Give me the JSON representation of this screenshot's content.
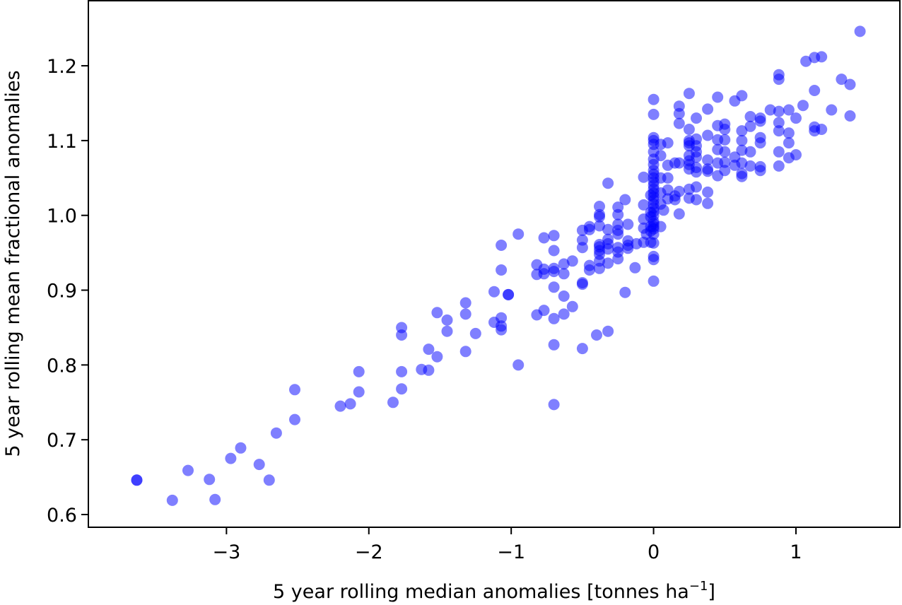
{
  "chart_data": {
    "type": "scatter",
    "title": "",
    "xlabel": "5 year rolling median anomalies [tonnes ha",
    "xlabel_sup": "−1",
    "xlabel_end": "]",
    "ylabel": "5 year rolling mean fractional anomalies",
    "xlim": [
      -3.97,
      1.73
    ],
    "ylim": [
      0.583,
      1.287
    ],
    "xticks": [
      -3,
      -2,
      -1,
      0,
      1
    ],
    "xtick_labels": [
      "−3",
      "−2",
      "−1",
      "0",
      "1"
    ],
    "yticks": [
      0.6,
      0.7,
      0.8,
      0.9,
      1.0,
      1.1,
      1.2
    ],
    "ytick_labels": [
      "0.6",
      "0.7",
      "0.8",
      "0.9",
      "1.0",
      "1.1",
      "1.2"
    ],
    "grid": false,
    "point_color": "#0000ff",
    "series": [
      {
        "points": [
          [
            -3.63,
            0.646
          ],
          [
            -3.63,
            0.646
          ],
          [
            -3.38,
            0.619
          ],
          [
            -3.27,
            0.659
          ],
          [
            -3.12,
            0.647
          ],
          [
            -3.08,
            0.62
          ],
          [
            -2.97,
            0.675
          ],
          [
            -2.9,
            0.689
          ],
          [
            -2.77,
            0.667
          ],
          [
            -2.7,
            0.646
          ],
          [
            -2.65,
            0.709
          ],
          [
            -2.52,
            0.727
          ],
          [
            -2.52,
            0.767
          ],
          [
            -2.2,
            0.745
          ],
          [
            -2.13,
            0.748
          ],
          [
            -2.07,
            0.764
          ],
          [
            -2.07,
            0.791
          ],
          [
            -1.83,
            0.75
          ],
          [
            -1.77,
            0.768
          ],
          [
            -1.77,
            0.791
          ],
          [
            -1.77,
            0.84
          ],
          [
            -1.77,
            0.85
          ],
          [
            -1.63,
            0.794
          ],
          [
            -1.58,
            0.793
          ],
          [
            -1.58,
            0.821
          ],
          [
            -1.52,
            0.811
          ],
          [
            -1.52,
            0.87
          ],
          [
            -1.45,
            0.845
          ],
          [
            -1.45,
            0.86
          ],
          [
            -1.32,
            0.818
          ],
          [
            -1.32,
            0.868
          ],
          [
            -1.32,
            0.883
          ],
          [
            -1.25,
            0.842
          ],
          [
            -1.12,
            0.898
          ],
          [
            -1.12,
            0.857
          ],
          [
            -1.07,
            0.847
          ],
          [
            -1.07,
            0.852
          ],
          [
            -1.07,
            0.863
          ],
          [
            -1.07,
            0.927
          ],
          [
            -1.07,
            0.96
          ],
          [
            -1.02,
            0.894
          ],
          [
            -1.02,
            0.894
          ],
          [
            -0.95,
            0.8
          ],
          [
            -0.95,
            0.975
          ],
          [
            -0.82,
            0.867
          ],
          [
            -0.82,
            0.921
          ],
          [
            -0.82,
            0.934
          ],
          [
            -0.77,
            0.873
          ],
          [
            -0.77,
            0.922
          ],
          [
            -0.77,
            0.928
          ],
          [
            -0.77,
            0.97
          ],
          [
            -0.7,
            0.747
          ],
          [
            -0.7,
            0.827
          ],
          [
            -0.7,
            0.862
          ],
          [
            -0.7,
            0.904
          ],
          [
            -0.7,
            0.925
          ],
          [
            -0.7,
            0.929
          ],
          [
            -0.7,
            0.953
          ],
          [
            -0.7,
            0.973
          ],
          [
            -0.63,
            0.868
          ],
          [
            -0.63,
            0.892
          ],
          [
            -0.63,
            0.922
          ],
          [
            -0.63,
            0.935
          ],
          [
            -0.57,
            0.878
          ],
          [
            -0.57,
            0.939
          ],
          [
            -0.5,
            0.822
          ],
          [
            -0.5,
            0.908
          ],
          [
            -0.5,
            0.91
          ],
          [
            -0.5,
            0.957
          ],
          [
            -0.5,
            0.967
          ],
          [
            -0.5,
            0.98
          ],
          [
            -0.45,
            0.927
          ],
          [
            -0.45,
            0.933
          ],
          [
            -0.45,
            0.981
          ],
          [
            -0.45,
            0.985
          ],
          [
            -0.4,
            0.84
          ],
          [
            -0.38,
            0.929
          ],
          [
            -0.38,
            0.939
          ],
          [
            -0.38,
            0.948
          ],
          [
            -0.38,
            0.953
          ],
          [
            -0.38,
            0.958
          ],
          [
            -0.38,
            0.961
          ],
          [
            -0.38,
            0.986
          ],
          [
            -0.38,
            0.998
          ],
          [
            -0.38,
            1.001
          ],
          [
            -0.38,
            1.012
          ],
          [
            -0.32,
            0.845
          ],
          [
            -0.32,
            0.936
          ],
          [
            -0.32,
            0.955
          ],
          [
            -0.32,
            0.962
          ],
          [
            -0.32,
            0.968
          ],
          [
            -0.32,
            0.981
          ],
          [
            -0.32,
            1.043
          ],
          [
            -0.25,
            0.942
          ],
          [
            -0.25,
            0.951
          ],
          [
            -0.25,
            0.957
          ],
          [
            -0.25,
            0.975
          ],
          [
            -0.25,
            0.98
          ],
          [
            -0.25,
            0.988
          ],
          [
            -0.25,
            1.001
          ],
          [
            -0.25,
            1.011
          ],
          [
            -0.2,
            0.897
          ],
          [
            -0.2,
            1.021
          ],
          [
            -0.18,
            0.956
          ],
          [
            -0.18,
            0.96
          ],
          [
            -0.18,
            0.966
          ],
          [
            -0.18,
            0.988
          ],
          [
            -0.13,
            0.93
          ],
          [
            -0.12,
            0.962
          ],
          [
            -0.07,
            0.964
          ],
          [
            -0.07,
            0.983
          ],
          [
            -0.07,
            0.995
          ],
          [
            -0.07,
            1.014
          ],
          [
            -0.07,
            1.051
          ],
          [
            -0.05,
            0.975
          ],
          [
            -0.02,
            0.964
          ],
          [
            -0.02,
            0.979
          ],
          [
            -0.02,
            0.985
          ],
          [
            -0.02,
            0.998
          ],
          [
            -0.02,
            1.004
          ],
          [
            -0.02,
            1.027
          ],
          [
            0.0,
            0.912
          ],
          [
            0.0,
            0.941
          ],
          [
            0.0,
            0.945
          ],
          [
            0.0,
            0.963
          ],
          [
            0.0,
            0.975
          ],
          [
            0.0,
            0.982
          ],
          [
            0.0,
            0.985
          ],
          [
            0.0,
            0.989
          ],
          [
            0.0,
            0.992
          ],
          [
            0.0,
            1.0
          ],
          [
            0.0,
            1.005
          ],
          [
            0.0,
            1.01
          ],
          [
            0.0,
            1.015
          ],
          [
            0.0,
            1.02
          ],
          [
            0.0,
            1.025
          ],
          [
            0.0,
            1.03
          ],
          [
            0.0,
            1.035
          ],
          [
            0.0,
            1.04
          ],
          [
            0.0,
            1.045
          ],
          [
            0.0,
            1.05
          ],
          [
            0.0,
            1.055
          ],
          [
            0.0,
            1.06
          ],
          [
            0.0,
            1.068
          ],
          [
            0.0,
            1.075
          ],
          [
            0.0,
            1.085
          ],
          [
            0.0,
            1.095
          ],
          [
            0.0,
            1.1
          ],
          [
            0.0,
            1.104
          ],
          [
            0.0,
            1.135
          ],
          [
            0.0,
            1.155
          ],
          [
            0.05,
            0.985
          ],
          [
            0.05,
            1.015
          ],
          [
            0.05,
            1.03
          ],
          [
            0.05,
            1.05
          ],
          [
            0.05,
            1.08
          ],
          [
            0.05,
            1.095
          ],
          [
            0.07,
            1.007
          ],
          [
            0.1,
            1.022
          ],
          [
            0.1,
            1.034
          ],
          [
            0.1,
            1.05
          ],
          [
            0.1,
            1.067
          ],
          [
            0.1,
            1.097
          ],
          [
            0.15,
            1.021
          ],
          [
            0.15,
            1.026
          ],
          [
            0.15,
            1.07
          ],
          [
            0.18,
            1.002
          ],
          [
            0.18,
            1.032
          ],
          [
            0.18,
            1.07
          ],
          [
            0.18,
            1.123
          ],
          [
            0.18,
            1.136
          ],
          [
            0.18,
            1.146
          ],
          [
            0.25,
            1.023
          ],
          [
            0.25,
            1.035
          ],
          [
            0.25,
            1.062
          ],
          [
            0.25,
            1.068
          ],
          [
            0.25,
            1.073
          ],
          [
            0.25,
            1.08
          ],
          [
            0.25,
            1.093
          ],
          [
            0.25,
            1.097
          ],
          [
            0.25,
            1.1
          ],
          [
            0.25,
            1.115
          ],
          [
            0.25,
            1.163
          ],
          [
            0.3,
            1.021
          ],
          [
            0.3,
            1.038
          ],
          [
            0.3,
            1.058
          ],
          [
            0.3,
            1.064
          ],
          [
            0.3,
            1.078
          ],
          [
            0.3,
            1.085
          ],
          [
            0.3,
            1.093
          ],
          [
            0.3,
            1.102
          ],
          [
            0.3,
            1.13
          ],
          [
            0.38,
            1.016
          ],
          [
            0.38,
            1.031
          ],
          [
            0.38,
            1.059
          ],
          [
            0.38,
            1.062
          ],
          [
            0.38,
            1.074
          ],
          [
            0.38,
            1.107
          ],
          [
            0.38,
            1.142
          ],
          [
            0.45,
            1.053
          ],
          [
            0.45,
            1.07
          ],
          [
            0.45,
            1.088
          ],
          [
            0.45,
            1.101
          ],
          [
            0.45,
            1.12
          ],
          [
            0.45,
            1.158
          ],
          [
            0.5,
            1.06
          ],
          [
            0.5,
            1.071
          ],
          [
            0.5,
            1.085
          ],
          [
            0.5,
            1.101
          ],
          [
            0.5,
            1.115
          ],
          [
            0.5,
            1.122
          ],
          [
            0.57,
            1.067
          ],
          [
            0.57,
            1.078
          ],
          [
            0.57,
            1.153
          ],
          [
            0.62,
            1.052
          ],
          [
            0.62,
            1.056
          ],
          [
            0.62,
            1.07
          ],
          [
            0.62,
            1.087
          ],
          [
            0.62,
            1.1
          ],
          [
            0.62,
            1.113
          ],
          [
            0.62,
            1.16
          ],
          [
            0.68,
            1.066
          ],
          [
            0.68,
            1.085
          ],
          [
            0.68,
            1.119
          ],
          [
            0.68,
            1.132
          ],
          [
            0.75,
            1.06
          ],
          [
            0.75,
            1.065
          ],
          [
            0.75,
            1.097
          ],
          [
            0.75,
            1.104
          ],
          [
            0.75,
            1.126
          ],
          [
            0.75,
            1.13
          ],
          [
            0.82,
            1.141
          ],
          [
            0.88,
            1.066
          ],
          [
            0.88,
            1.085
          ],
          [
            0.88,
            1.113
          ],
          [
            0.88,
            1.124
          ],
          [
            0.88,
            1.139
          ],
          [
            0.88,
            1.182
          ],
          [
            0.88,
            1.188
          ],
          [
            0.95,
            1.077
          ],
          [
            0.95,
            1.097
          ],
          [
            0.95,
            1.11
          ],
          [
            0.95,
            1.141
          ],
          [
            1.0,
            1.081
          ],
          [
            1.0,
            1.13
          ],
          [
            1.05,
            1.147
          ],
          [
            1.07,
            1.206
          ],
          [
            1.13,
            1.113
          ],
          [
            1.13,
            1.118
          ],
          [
            1.13,
            1.167
          ],
          [
            1.13,
            1.211
          ],
          [
            1.18,
            1.212
          ],
          [
            1.18,
            1.115
          ],
          [
            1.25,
            1.141
          ],
          [
            1.32,
            1.182
          ],
          [
            1.38,
            1.133
          ],
          [
            1.38,
            1.175
          ],
          [
            1.45,
            1.246
          ]
        ]
      }
    ]
  }
}
